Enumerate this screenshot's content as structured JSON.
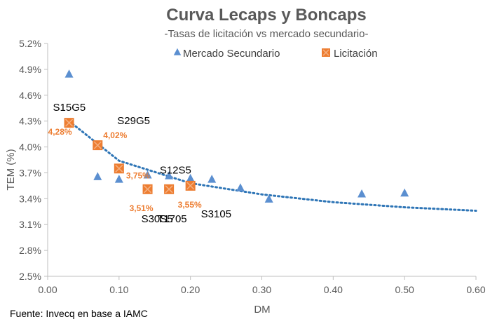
{
  "chart_data": {
    "type": "scatter",
    "title": "Curva Lecaps y Boncaps",
    "subtitle": "-Tasas de licitación vs mercado secundario-",
    "xlabel": "DM",
    "ylabel": "TEM (%)",
    "xlim": [
      0.0,
      0.6
    ],
    "ylim": [
      2.5,
      5.2
    ],
    "x_ticks": [
      "0.00",
      "0.10",
      "0.20",
      "0.30",
      "0.40",
      "0.50",
      "0.60"
    ],
    "y_ticks": [
      "2.5%",
      "2.8%",
      "3.1%",
      "3.4%",
      "3.7%",
      "4.0%",
      "4.3%",
      "4.6%",
      "4.9%",
      "5.2%"
    ],
    "grid": false,
    "legend_position": "top-right",
    "series": [
      {
        "name": "Mercado Secundario",
        "marker": "triangle",
        "color": "#5B8FD0",
        "points": [
          {
            "x": 0.03,
            "y": 4.84
          },
          {
            "x": 0.07,
            "y": 3.65
          },
          {
            "x": 0.1,
            "y": 3.62
          },
          {
            "x": 0.14,
            "y": 3.67
          },
          {
            "x": 0.17,
            "y": 3.66
          },
          {
            "x": 0.2,
            "y": 3.63
          },
          {
            "x": 0.23,
            "y": 3.62
          },
          {
            "x": 0.27,
            "y": 3.52
          },
          {
            "x": 0.31,
            "y": 3.39
          },
          {
            "x": 0.44,
            "y": 3.45
          },
          {
            "x": 0.5,
            "y": 3.46
          }
        ]
      },
      {
        "name": "Licitación",
        "marker": "square",
        "color": "#ED7D31",
        "points": [
          {
            "x": 0.03,
            "y": 4.28,
            "label": "4,28%"
          },
          {
            "x": 0.07,
            "y": 4.02,
            "label": "4,02%"
          },
          {
            "x": 0.1,
            "y": 3.75,
            "label": "3,75%"
          },
          {
            "x": 0.14,
            "y": 3.51,
            "label": "3,51%"
          },
          {
            "x": 0.17,
            "y": 3.51,
            "label": ""
          },
          {
            "x": 0.2,
            "y": 3.55,
            "label": "3,55%"
          }
        ]
      }
    ],
    "trendline": {
      "type": "power",
      "color": "#2E75B6",
      "x_range": [
        0.03,
        0.6
      ],
      "points": [
        {
          "x": 0.03,
          "y": 4.3
        },
        {
          "x": 0.1,
          "y": 3.84
        },
        {
          "x": 0.2,
          "y": 3.58
        },
        {
          "x": 0.3,
          "y": 3.45
        },
        {
          "x": 0.4,
          "y": 3.36
        },
        {
          "x": 0.5,
          "y": 3.3
        },
        {
          "x": 0.6,
          "y": 3.26
        }
      ]
    },
    "annotations": [
      {
        "text": "S15G5",
        "x": 0.03,
        "y": 4.28
      },
      {
        "text": "S29G5",
        "x": 0.07,
        "y": 4.02
      },
      {
        "text": "S12S5",
        "x": 0.1,
        "y": 3.75
      },
      {
        "text": "S30S5",
        "x": 0.14,
        "y": 3.51
      },
      {
        "text": "T1705",
        "x": 0.17,
        "y": 3.51
      },
      {
        "text": "S3105",
        "x": 0.2,
        "y": 3.55
      }
    ]
  },
  "source": "Fuente: Invecq en base a IAMC"
}
